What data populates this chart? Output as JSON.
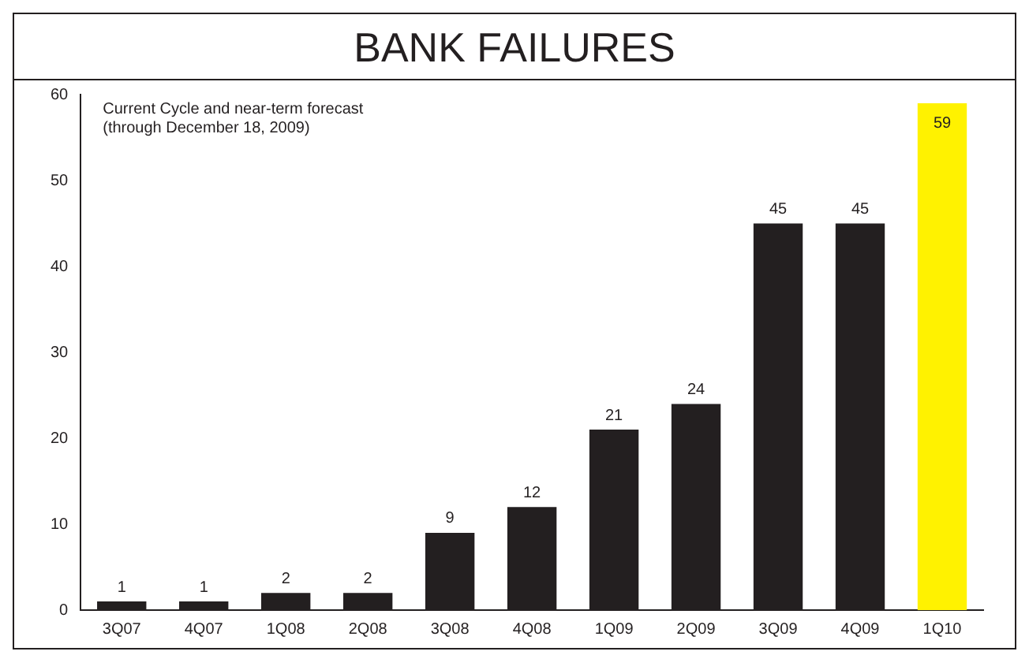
{
  "chart_data": {
    "type": "bar",
    "title": "BANK FAILURES",
    "categories": [
      "3Q07",
      "4Q07",
      "1Q08",
      "2Q08",
      "3Q08",
      "4Q08",
      "1Q09",
      "2Q09",
      "3Q09",
      "4Q09",
      "1Q10"
    ],
    "values": [
      1,
      1,
      2,
      2,
      9,
      12,
      21,
      24,
      45,
      45,
      59
    ],
    "colors": [
      "#231f20",
      "#231f20",
      "#231f20",
      "#231f20",
      "#231f20",
      "#231f20",
      "#231f20",
      "#231f20",
      "#231f20",
      "#231f20",
      "#fff200"
    ],
    "ylim": [
      0,
      60
    ],
    "yticks": [
      0,
      10,
      20,
      30,
      40,
      50,
      60
    ],
    "grid": false,
    "legend": false,
    "data_labels": true,
    "annotations": [
      "Current Cycle and near-term forecast",
      "(through December 18, 2009)"
    ]
  }
}
